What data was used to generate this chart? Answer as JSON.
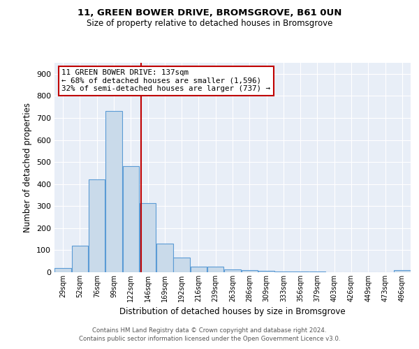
{
  "title1": "11, GREEN BOWER DRIVE, BROMSGROVE, B61 0UN",
  "title2": "Size of property relative to detached houses in Bromsgrove",
  "xlabel": "Distribution of detached houses by size in Bromsgrove",
  "ylabel": "Number of detached properties",
  "bin_labels": [
    "29sqm",
    "52sqm",
    "76sqm",
    "99sqm",
    "122sqm",
    "146sqm",
    "169sqm",
    "192sqm",
    "216sqm",
    "239sqm",
    "263sqm",
    "286sqm",
    "309sqm",
    "333sqm",
    "356sqm",
    "379sqm",
    "403sqm",
    "426sqm",
    "449sqm",
    "473sqm",
    "496sqm"
  ],
  "bar_values": [
    20,
    120,
    420,
    730,
    480,
    315,
    130,
    65,
    25,
    25,
    12,
    8,
    5,
    3,
    2,
    2,
    1,
    0,
    0,
    0,
    8
  ],
  "bar_facecolor": "#c9daea",
  "bar_edgecolor": "#5b9bd5",
  "bar_linewidth": 0.8,
  "vline_index": 4,
  "vline_color": "#c00000",
  "vline_linewidth": 1.5,
  "annotation_text": "11 GREEN BOWER DRIVE: 137sqm\n← 68% of detached houses are smaller (1,596)\n32% of semi-detached houses are larger (737) →",
  "annotation_box_edgecolor": "#c00000",
  "annotation_box_facecolor": "white",
  "ylim": [
    0,
    950
  ],
  "yticks": [
    0,
    100,
    200,
    300,
    400,
    500,
    600,
    700,
    800,
    900
  ],
  "bg_color": "#e8eef7",
  "grid_color": "#ffffff",
  "footer1": "Contains HM Land Registry data © Crown copyright and database right 2024.",
  "footer2": "Contains public sector information licensed under the Open Government Licence v3.0."
}
